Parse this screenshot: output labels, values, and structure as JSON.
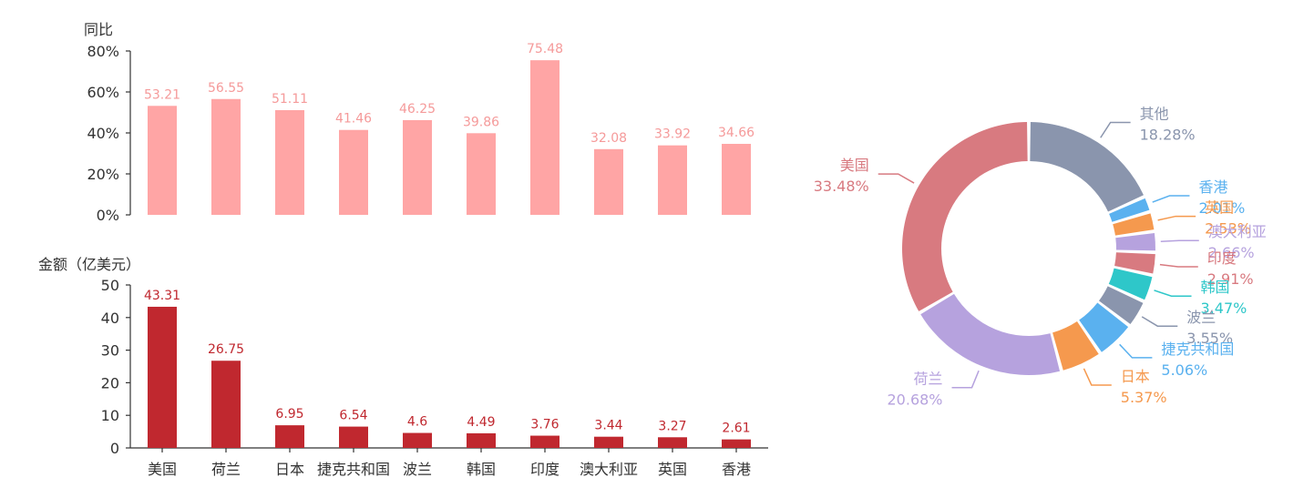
{
  "chart_data": [
    {
      "type": "bar",
      "ylabel": "同比",
      "categories": [
        "美国",
        "荷兰",
        "日本",
        "捷克共和国",
        "波兰",
        "韩国",
        "印度",
        "澳大利亚",
        "英国",
        "香港"
      ],
      "values": [
        53.21,
        56.55,
        51.11,
        41.46,
        46.25,
        39.86,
        75.48,
        32.08,
        33.92,
        34.66
      ],
      "value_labels": [
        "53.21",
        "56.55",
        "51.11",
        "41.46",
        "46.25",
        "39.86",
        "75.48",
        "32.08",
        "33.92",
        "34.66"
      ],
      "ylim": [
        0,
        80
      ],
      "yticks": [
        "0%",
        "20%",
        "40%",
        "60%",
        "80%"
      ],
      "color": "#ffa5a5",
      "label_color": "#f59a9a"
    },
    {
      "type": "bar",
      "ylabel": "金额（亿美元）",
      "categories": [
        "美国",
        "荷兰",
        "日本",
        "捷克共和国",
        "波兰",
        "韩国",
        "印度",
        "澳大利亚",
        "英国",
        "香港"
      ],
      "values": [
        43.31,
        26.75,
        6.95,
        6.54,
        4.6,
        4.49,
        3.76,
        3.44,
        3.27,
        2.61
      ],
      "value_labels": [
        "43.31",
        "26.75",
        "6.95",
        "6.54",
        "4.6",
        "4.49",
        "3.76",
        "3.44",
        "3.27",
        "2.61"
      ],
      "ylim": [
        0,
        50
      ],
      "yticks": [
        "0",
        "10",
        "20",
        "30",
        "40",
        "50"
      ],
      "color": "#c0282f",
      "label_color": "#c0282f"
    },
    {
      "type": "pie",
      "slices": [
        {
          "name": "其他",
          "value": 18.28,
          "pct": "18.28%",
          "color": "#8a95ad"
        },
        {
          "name": "香港",
          "value": 2.01,
          "pct": "2.01%",
          "color": "#5ab1ef"
        },
        {
          "name": "英国",
          "value": 2.53,
          "pct": "2.53%",
          "color": "#f5994e"
        },
        {
          "name": "澳大利亚",
          "value": 2.66,
          "pct": "2.66%",
          "color": "#b6a2de"
        },
        {
          "name": "印度",
          "value": 2.91,
          "pct": "2.91%",
          "color": "#d87a80"
        },
        {
          "name": "韩国",
          "value": 3.47,
          "pct": "3.47%",
          "color": "#2ec7c9"
        },
        {
          "name": "波兰",
          "value": 3.55,
          "pct": "3.55%",
          "color": "#8a95ad"
        },
        {
          "name": "捷克共和国",
          "value": 5.06,
          "pct": "5.06%",
          "color": "#5ab1ef"
        },
        {
          "name": "日本",
          "value": 5.37,
          "pct": "5.37%",
          "color": "#f5994e"
        },
        {
          "name": "荷兰",
          "value": 20.68,
          "pct": "20.68%",
          "color": "#b6a2de"
        },
        {
          "name": "美国",
          "value": 33.48,
          "pct": "33.48%",
          "color": "#d87a80"
        }
      ]
    }
  ]
}
